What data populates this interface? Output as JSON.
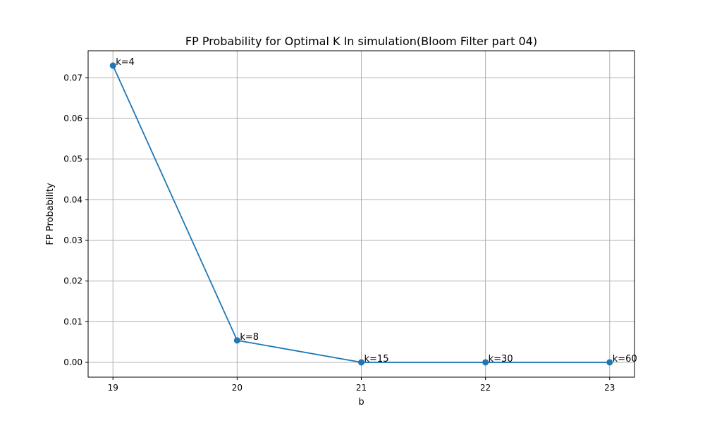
{
  "chart_data": {
    "type": "line",
    "title": "FP Probability for Optimal K In simulation(Bloom Filter part 04)",
    "xlabel": "b",
    "ylabel": "FP Probability",
    "grid": true,
    "x": [
      19,
      20,
      21,
      22,
      23
    ],
    "y": [
      0.073,
      0.0054,
      0.0,
      0.0,
      0.0
    ],
    "point_labels": [
      "k=4",
      "k=8",
      "k=15",
      "k=30",
      "k=60"
    ],
    "xticks": [
      19,
      20,
      21,
      22,
      23
    ],
    "xtick_labels": [
      "19",
      "20",
      "21",
      "22",
      "23"
    ],
    "yticks": [
      0.0,
      0.01,
      0.02,
      0.03,
      0.04,
      0.05,
      0.06,
      0.07
    ],
    "ytick_labels": [
      "0.00",
      "0.01",
      "0.02",
      "0.03",
      "0.04",
      "0.05",
      "0.06",
      "0.07"
    ],
    "xlim": [
      18.8,
      23.2
    ],
    "ylim": [
      -0.00365,
      0.07665
    ],
    "line_color": "#1f77b4"
  }
}
